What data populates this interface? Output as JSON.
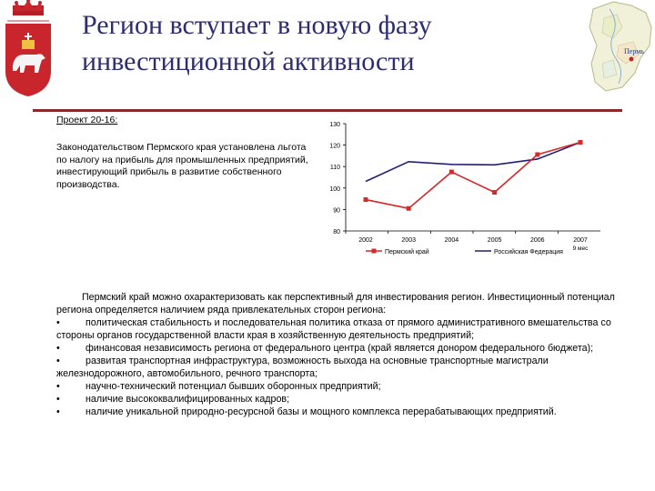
{
  "header": {
    "title_line1": "Регион вступает в новую фазу",
    "title_line2": "инвестиционной активности",
    "map_label": "Пермь"
  },
  "colors": {
    "title": "#2d2d6e",
    "rule": "#8b2a2a",
    "series_perm": "#d42a2a",
    "series_russia": "#1f1f7a",
    "emblem_shield": "#c8262c"
  },
  "project": {
    "title": "Проект 20-16:",
    "text": "Законодательством Пермского края установлена льгота по налогу на прибыль для промышленных предприятий, инвестирующий прибыль в развитие собственного производства."
  },
  "chart_data": {
    "type": "line",
    "categories": [
      "2002",
      "2003",
      "2004",
      "2005",
      "2006",
      "2007"
    ],
    "series": [
      {
        "name": "Пермский край",
        "values": [
          94.6,
          90.5,
          107.5,
          98,
          115.6,
          121.3
        ]
      },
      {
        "name": "Российская Федерация",
        "values": [
          103.1,
          112.3,
          111,
          110.8,
          113.5,
          121.3
        ]
      }
    ],
    "yticks": [
      "130",
      "120",
      "110",
      "100",
      "90",
      "80"
    ],
    "ylim": [
      80,
      130
    ],
    "annotation": "9 мес",
    "grid": false,
    "legend": "bottom"
  },
  "body": {
    "intro": "Пермский край можно охарактеризовать как перспективный для инвестирования регион. Инвестиционный потенциал региона определяется наличием ряда привлекательных сторон региона:",
    "bullet_char": "•",
    "bullets": [
      "политическая стабильность  и последовательная политика отказа от прямого административного вмешательства со стороны органов государственной власти края в хозяйственную деятельность предприятий;",
      "финансовая независимость региона от федерального центра (край является донором федерального бюджета);",
      "развитая транспортная инфраструктура, возможность выхода на основные транспортные магистрали железнодорожного, автомобильного, речного транспорта;",
      "научно-технический потенциал бывших оборонных предприятий;",
      "наличие высококвалифицированных кадров;",
      "наличие уникальной природно-ресурсной базы и мощного комплекса перерабатывающих предприятий."
    ]
  }
}
